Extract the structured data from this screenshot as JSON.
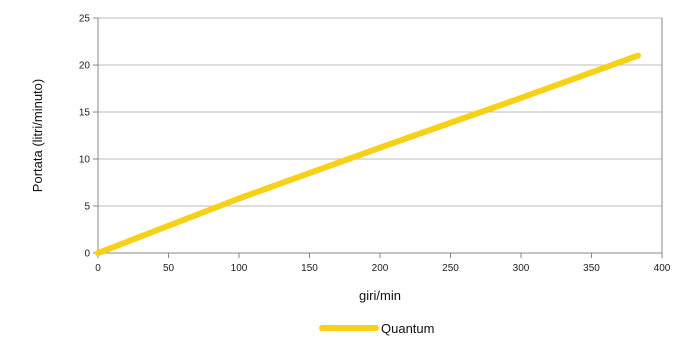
{
  "chart_data": {
    "type": "line",
    "title": "",
    "xlabel": "giri/min",
    "ylabel": "Portata (litri/minuto)",
    "xlim": [
      0,
      400
    ],
    "ylim": [
      0,
      25
    ],
    "xticks": [
      0,
      50,
      100,
      150,
      200,
      250,
      300,
      350,
      400
    ],
    "yticks": [
      0,
      5,
      10,
      15,
      20,
      25
    ],
    "grid": {
      "horizontal": true,
      "vertical": false
    },
    "legend": {
      "position": "bottom-center"
    },
    "series": [
      {
        "name": "Quantum",
        "color": "#f7d117",
        "x": [
          0,
          100,
          200,
          300,
          383
        ],
        "y": [
          0,
          5.8,
          11.2,
          16.5,
          21
        ]
      }
    ]
  }
}
